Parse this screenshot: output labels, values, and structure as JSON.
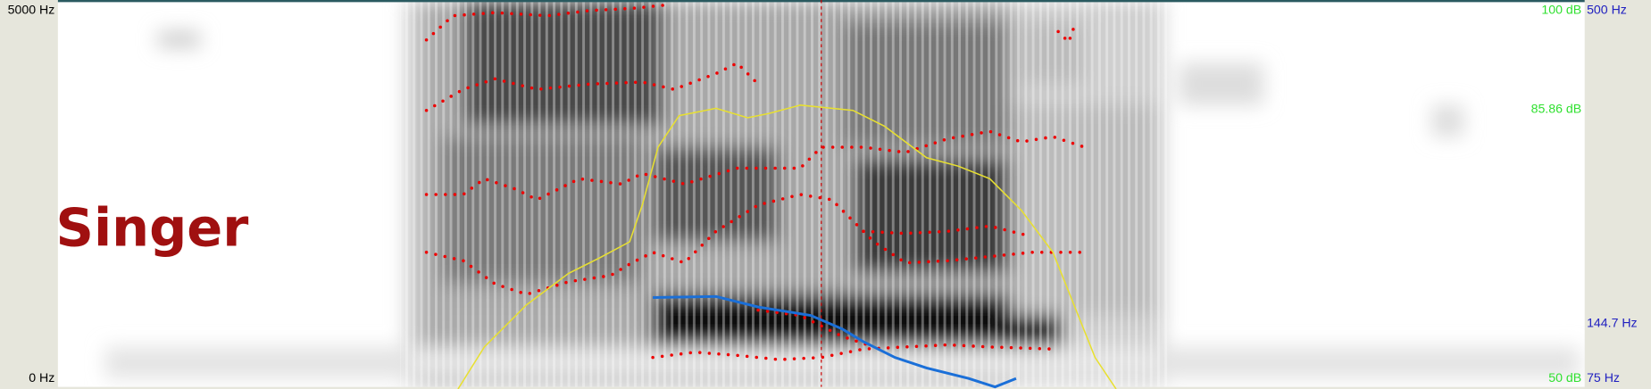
{
  "title": "Singer",
  "left_axis": {
    "top": "5000 Hz",
    "bottom": "0 Hz"
  },
  "intensity_axis": {
    "labels": [
      "100 dB",
      "85.86 dB",
      "50 dB"
    ]
  },
  "pitch_axis": {
    "labels": [
      "500 Hz",
      "144.7 Hz",
      "75 Hz"
    ]
  }
}
